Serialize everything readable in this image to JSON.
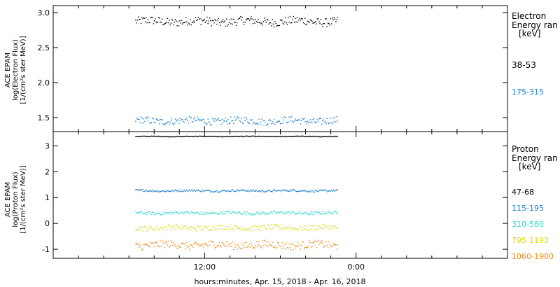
{
  "chart_data": [
    {
      "type": "scatter",
      "panel": "electron",
      "ylabel_lines": [
        "ACE EPAM",
        "log(Electron Flux)",
        "[1/(cm²s ster MeV)]"
      ],
      "ylim": [
        1.3,
        3.1
      ],
      "yticks": [
        1.5,
        2.0,
        2.5,
        3.0
      ],
      "ytick_labels": [
        "1.5",
        "2.0",
        "2.5",
        "3.0"
      ],
      "legend_title": [
        "Electron",
        "Energy ran",
        "[keV]"
      ],
      "series": [
        {
          "name": "38-53",
          "color": "#000000",
          "mean": 2.88,
          "jitter": 0.06
        },
        {
          "name": "175-315",
          "color": "#1a7fd0",
          "mean": 1.46,
          "jitter": 0.05
        }
      ]
    },
    {
      "type": "scatter",
      "panel": "proton",
      "ylabel_lines": [
        "ACE EPAM",
        "log(Proton Flux)",
        "[1/(cm²s ster MeV)]"
      ],
      "ylim": [
        -1.35,
        3.55
      ],
      "yticks": [
        -1,
        0,
        1,
        2,
        3
      ],
      "ytick_labels": [
        "-1",
        "0",
        "1",
        "2",
        "3"
      ],
      "legend_title": [
        "Proton",
        "Energy ran",
        "[keV]"
      ],
      "series": [
        {
          "name": "47-68",
          "color": "#000000",
          "mean": 3.38,
          "jitter": 0.015
        },
        {
          "name": "115-195",
          "color": "#1a7fd0",
          "mean": 1.28,
          "jitter": 0.04
        },
        {
          "name": "310-580",
          "color": "#2cd8d0",
          "mean": 0.42,
          "jitter": 0.06
        },
        {
          "name": "795-1193",
          "color": "#d8de10",
          "mean": -0.15,
          "jitter": 0.1
        },
        {
          "name": "1060-1900",
          "color": "#f08a10",
          "mean": -0.82,
          "jitter": 0.15
        }
      ]
    }
  ],
  "x_axis": {
    "label": "hours:minutes, Apr. 15, 2018 - Apr. 16, 2018",
    "tick_labels": [
      {
        "text": "12:00",
        "hour": 12
      },
      {
        "text": "0:00",
        "hour": 24
      }
    ],
    "range_hours": [
      0,
      36
    ],
    "data_range_hours": [
      6.5,
      22.5
    ]
  }
}
